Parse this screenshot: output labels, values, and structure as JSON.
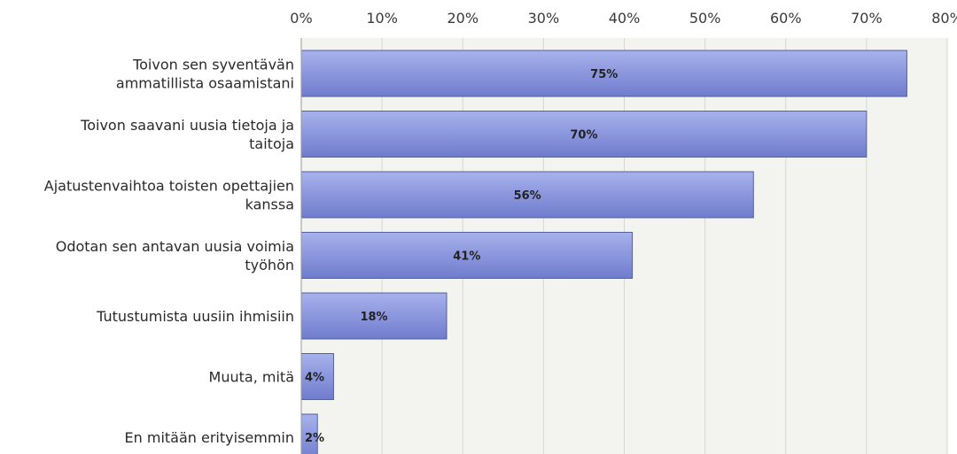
{
  "chart_data": {
    "type": "bar",
    "orientation": "horizontal",
    "title": "",
    "xlabel": "",
    "ylabel": "",
    "xlim": [
      0,
      80
    ],
    "grid": true,
    "legend": "none",
    "ticks": [
      "0%",
      "10%",
      "20%",
      "30%",
      "40%",
      "50%",
      "60%",
      "70%",
      "80%"
    ],
    "tick_values": [
      0,
      10,
      20,
      30,
      40,
      50,
      60,
      70,
      80
    ],
    "categories": [
      [
        "Toivon sen syventävän",
        "ammatillista osaamistani"
      ],
      [
        "Toivon saavani uusia tietoja ja",
        "taitoja"
      ],
      [
        "Ajatustenvaihtoa toisten opettajien",
        "kanssa"
      ],
      [
        "Odotan sen antavan uusia voimia",
        "työhön"
      ],
      [
        "Tutustumista uusiin ihmisiin"
      ],
      [
        "Muuta, mitä"
      ],
      [
        "En mitään erityisemmin"
      ]
    ],
    "values": [
      75,
      70,
      56,
      41,
      18,
      4,
      2
    ],
    "data_labels": [
      "75%",
      "70%",
      "56%",
      "41%",
      "18%",
      "4%",
      "2%"
    ],
    "colors": {
      "bar_fill_light": "#a7b2ec",
      "bar_fill_dark": "#6f7ccd",
      "bar_border": "#55609e",
      "plot_background": "#f3f4ef",
      "grid": "#d6d8d0",
      "axis": "#9a9a9a"
    }
  }
}
